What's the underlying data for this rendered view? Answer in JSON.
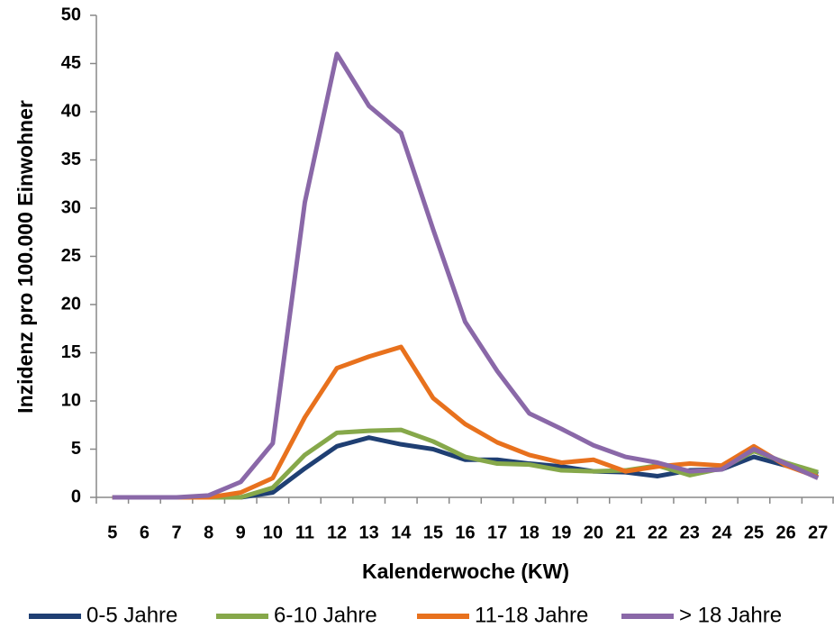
{
  "chart_data": {
    "type": "line",
    "x_label": "Kalenderwoche (KW)",
    "y_label": "Inzidenz pro 100.000 Einwohner",
    "categories": [
      "5",
      "6",
      "7",
      "8",
      "9",
      "10",
      "11",
      "12",
      "13",
      "14",
      "15",
      "16",
      "17",
      "18",
      "19",
      "20",
      "21",
      "22",
      "23",
      "24",
      "25",
      "26",
      "27"
    ],
    "series": [
      {
        "name": "0-5 Jahre",
        "color": "#1f3f73",
        "values": [
          0,
          0,
          0,
          0,
          0,
          0.5,
          3,
          5.3,
          6.2,
          5.5,
          5,
          3.9,
          3.9,
          3.5,
          3.2,
          2.7,
          2.6,
          2.2,
          2.8,
          2.9,
          4.2,
          3.3,
          2.4
        ]
      },
      {
        "name": "6-10 Jahre",
        "color": "#86a84a",
        "values": [
          0,
          0,
          0,
          0,
          0,
          1,
          4.4,
          6.7,
          6.9,
          7,
          5.8,
          4.2,
          3.5,
          3.4,
          2.8,
          2.7,
          2.8,
          3.3,
          2.3,
          3,
          4.8,
          3.6,
          2.6
        ]
      },
      {
        "name": "11-18 Jahre",
        "color": "#e8711d",
        "values": [
          0,
          0,
          0,
          0,
          0.5,
          2,
          8.3,
          13.4,
          14.6,
          15.6,
          10.3,
          7.6,
          5.7,
          4.4,
          3.6,
          3.9,
          2.7,
          3.2,
          3.5,
          3.3,
          5.3,
          3.3,
          2.1
        ]
      },
      {
        "name": "> 18 Jahre",
        "color": "#8a68a8",
        "values": [
          0,
          0,
          0,
          0.2,
          1.6,
          5.6,
          30.6,
          46,
          40.6,
          37.8,
          27.8,
          18.2,
          13.1,
          8.7,
          7.1,
          5.4,
          4.2,
          3.6,
          2.7,
          2.9,
          5,
          3.5,
          2
        ]
      }
    ],
    "ylim": [
      0,
      50
    ],
    "yticks": [
      0,
      5,
      10,
      15,
      20,
      25,
      30,
      35,
      40,
      45,
      50
    ],
    "grid": false,
    "legend": "bottom"
  }
}
